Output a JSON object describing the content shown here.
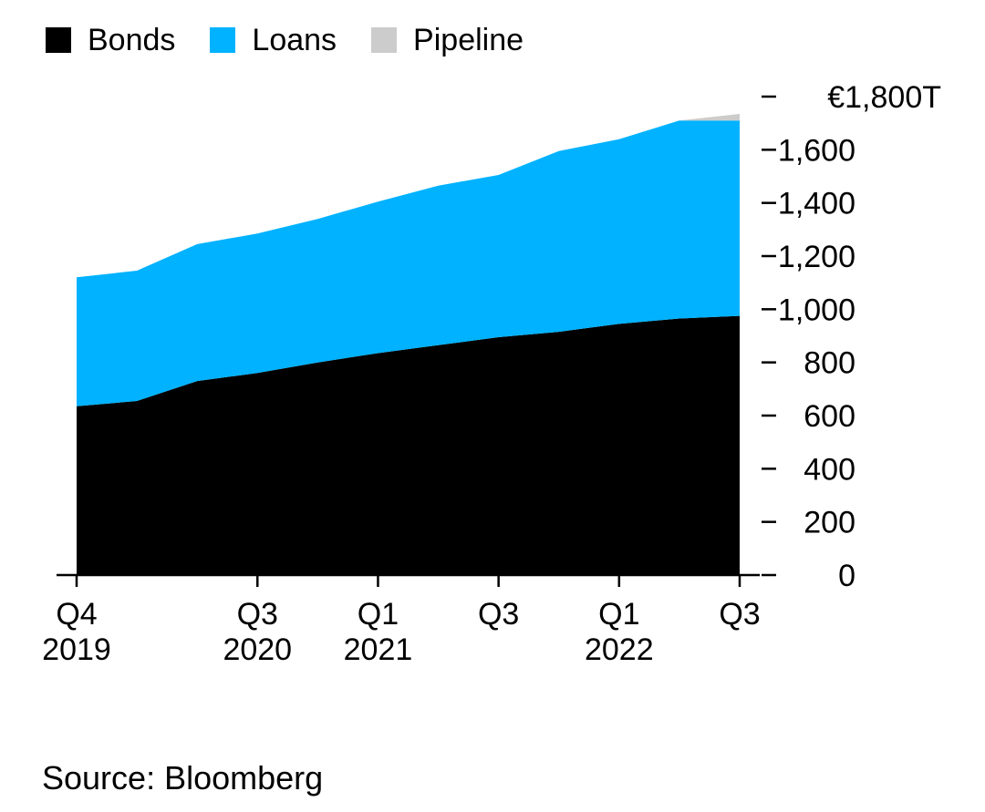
{
  "chart_data": {
    "type": "area",
    "stacked": true,
    "x": [
      "2019-Q4",
      "2020-Q1",
      "2020-Q2",
      "2020-Q3",
      "2020-Q4",
      "2021-Q1",
      "2021-Q2",
      "2021-Q3",
      "2021-Q4",
      "2022-Q1",
      "2022-Q2",
      "2022-Q3"
    ],
    "series": [
      {
        "name": "Bonds",
        "color": "#000000",
        "values": [
          635,
          655,
          730,
          760,
          800,
          835,
          865,
          895,
          915,
          945,
          965,
          975
        ]
      },
      {
        "name": "Loans",
        "color": "#00b2ff",
        "values": [
          485,
          490,
          515,
          525,
          540,
          570,
          600,
          610,
          680,
          695,
          745,
          735
        ]
      },
      {
        "name": "Pipeline",
        "color": "#cccccc",
        "values": [
          0,
          0,
          0,
          0,
          0,
          0,
          0,
          0,
          0,
          0,
          0,
          25
        ]
      }
    ],
    "y_axis": {
      "range": [
        0,
        1800
      ],
      "position": "right",
      "ticks": [
        0,
        200,
        400,
        600,
        800,
        1000,
        1200,
        1400,
        1600,
        1800
      ],
      "tick_labels": [
        "0",
        "200",
        "400",
        "600",
        "800",
        "1,000",
        "1,200",
        "1,400",
        "1,600",
        "€1,800T"
      ]
    },
    "x_axis": {
      "tick_labels": [
        {
          "x": "2019-Q4",
          "line1": "Q4",
          "line2": "2019"
        },
        {
          "x": "2020-Q3",
          "line1": "Q3",
          "line2": "2020"
        },
        {
          "x": "2021-Q1",
          "line1": "Q1",
          "line2": "2021"
        },
        {
          "x": "2021-Q3",
          "line1": "Q3",
          "line2": ""
        },
        {
          "x": "2022-Q1",
          "line1": "Q1",
          "line2": "2022"
        },
        {
          "x": "2022-Q3",
          "line1": "Q3",
          "line2": ""
        }
      ]
    },
    "legend": {
      "placement": "top-left"
    },
    "grid": false
  },
  "source": "Source: Bloomberg"
}
